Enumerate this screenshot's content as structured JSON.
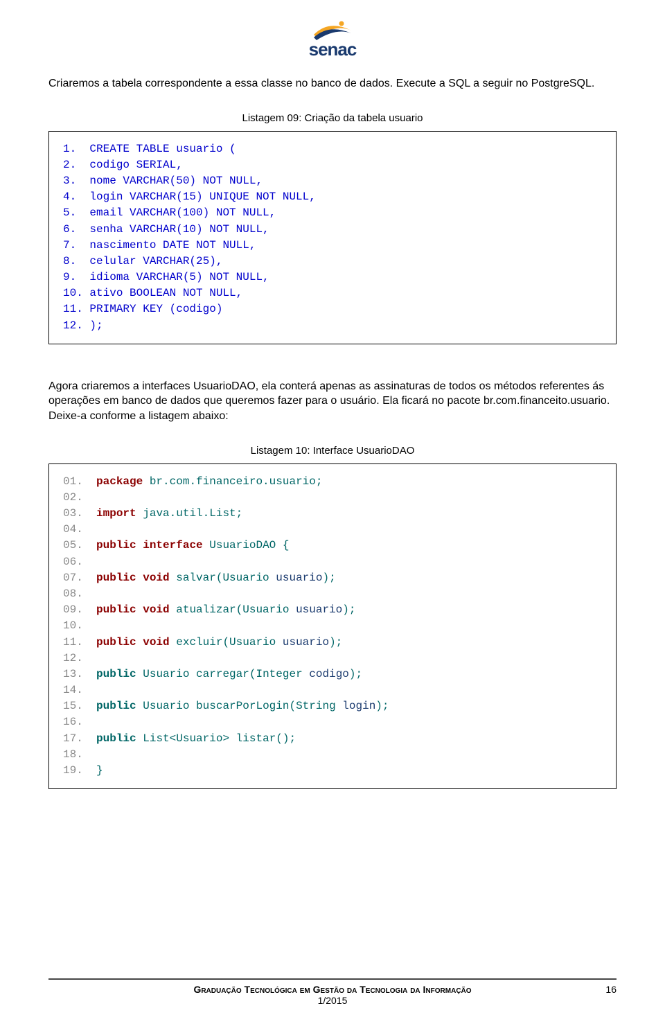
{
  "logo": {
    "text": "senac"
  },
  "para1": "Criaremos a tabela correspondente a essa classe no banco de dados. Execute a SQL a seguir no PostgreSQL.",
  "caption1": "Listagem 09: Criação da tabela usuario",
  "sql": {
    "color": "#0000cc",
    "lines": [
      "1.  CREATE TABLE usuario (",
      "2.  codigo SERIAL,",
      "3.  nome VARCHAR(50) NOT NULL,",
      "4.  login VARCHAR(15) UNIQUE NOT NULL,",
      "5.  email VARCHAR(100) NOT NULL,",
      "6.  senha VARCHAR(10) NOT NULL,",
      "7.  nascimento DATE NOT NULL,",
      "8.  celular VARCHAR(25),",
      "9.  idioma VARCHAR(5) NOT NULL,",
      "10. ativo BOOLEAN NOT NULL,",
      "11. PRIMARY KEY (codigo)",
      "12. );"
    ]
  },
  "para2": "Agora criaremos a interfaces UsuarioDAO, ela conterá apenas as assinaturas de todos os métodos referentes ás operações em banco de dados que queremos fazer para o usuário. Ela ficará no pacote br.com.financeito.usuario. Deixe-a conforme a listagem abaixo:",
  "caption2": "Listagem 10: Interface UsuarioDAO",
  "java": {
    "lines": [
      {
        "n": "01.",
        "t": [
          {
            "c": "red",
            "v": "package "
          },
          {
            "c": "teal",
            "v": "br.com.financeiro.usuario;"
          }
        ]
      },
      {
        "n": "02.",
        "t": []
      },
      {
        "n": "03.",
        "t": [
          {
            "c": "red",
            "v": "import "
          },
          {
            "c": "teal",
            "v": "java.util.List;"
          }
        ]
      },
      {
        "n": "04.",
        "t": []
      },
      {
        "n": "05.",
        "t": [
          {
            "c": "red",
            "v": "public interface "
          },
          {
            "c": "teal",
            "v": "UsuarioDAO {"
          }
        ]
      },
      {
        "n": "06.",
        "t": []
      },
      {
        "n": "07.",
        "t": [
          {
            "c": "red",
            "v": "public void "
          },
          {
            "c": "teal",
            "v": "salvar(Usuario "
          },
          {
            "c": "navy",
            "v": "usuario"
          },
          {
            "c": "teal",
            "v": ");"
          }
        ]
      },
      {
        "n": "08.",
        "t": []
      },
      {
        "n": "09.",
        "t": [
          {
            "c": "red",
            "v": "public void "
          },
          {
            "c": "teal",
            "v": "atualizar(Usuario "
          },
          {
            "c": "navy",
            "v": "usuario"
          },
          {
            "c": "teal",
            "v": ");"
          }
        ]
      },
      {
        "n": "10.",
        "t": []
      },
      {
        "n": "11.",
        "t": [
          {
            "c": "red",
            "v": "public void "
          },
          {
            "c": "teal",
            "v": "excluir(Usuario "
          },
          {
            "c": "navy",
            "v": "usuario"
          },
          {
            "c": "teal",
            "v": ");"
          }
        ]
      },
      {
        "n": "12.",
        "t": []
      },
      {
        "n": "13.",
        "t": [
          {
            "c": "tealbold",
            "v": "public "
          },
          {
            "c": "teal",
            "v": "Usuario carregar(Integer "
          },
          {
            "c": "navy",
            "v": "codigo"
          },
          {
            "c": "teal",
            "v": ");"
          }
        ]
      },
      {
        "n": "14.",
        "t": []
      },
      {
        "n": "15.",
        "t": [
          {
            "c": "tealbold",
            "v": "public "
          },
          {
            "c": "teal",
            "v": "Usuario buscarPorLogin(String "
          },
          {
            "c": "navy",
            "v": "login"
          },
          {
            "c": "teal",
            "v": ");"
          }
        ]
      },
      {
        "n": "16.",
        "t": []
      },
      {
        "n": "17.",
        "t": [
          {
            "c": "tealbold",
            "v": "public "
          },
          {
            "c": "teal",
            "v": "List<Usuario> listar();"
          }
        ]
      },
      {
        "n": "18.",
        "t": []
      },
      {
        "n": "19.",
        "t": [
          {
            "c": "teal",
            "v": "}"
          }
        ]
      }
    ]
  },
  "footer": {
    "line1": "Graduação Tecnológica em Gestão da Tecnologia da Informação",
    "line2": "1/2015",
    "page": "16"
  }
}
